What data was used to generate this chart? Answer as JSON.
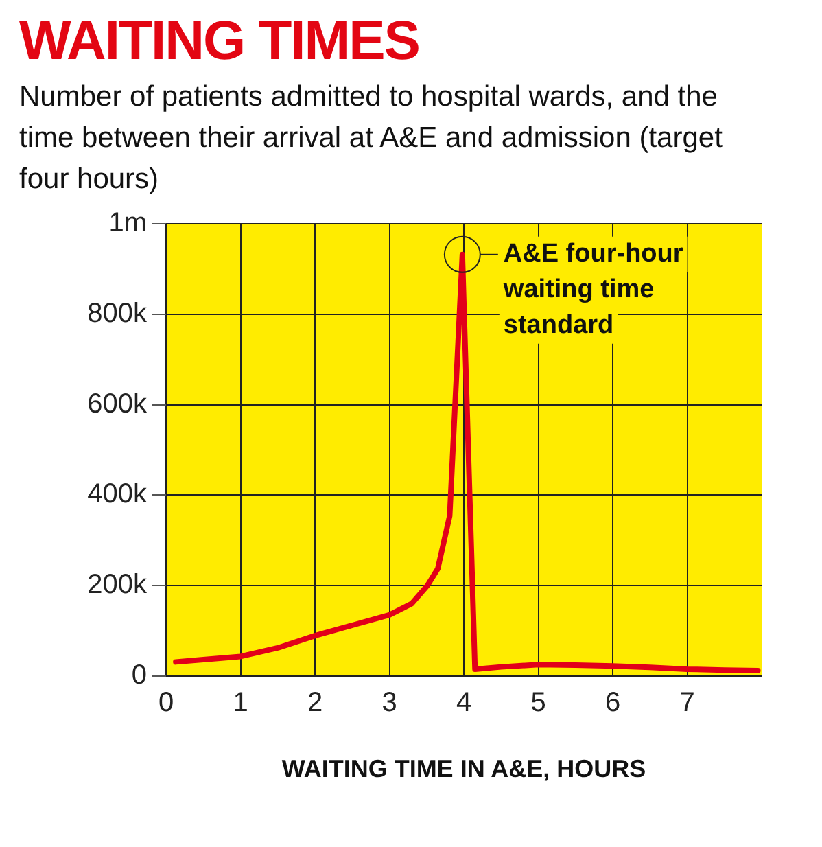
{
  "chart_data": {
    "type": "line",
    "title": "WAITING TIMES",
    "subtitle": "Number of patients admitted to hospital wards, and the time between their arrival at A&E and admission (target four hours)",
    "xlabel": "WAITING TIME IN A&E, HOURS",
    "x": [
      0.13,
      0.5,
      1,
      1.5,
      2,
      2.5,
      3,
      3.3,
      3.51,
      3.65,
      3.81,
      3.98,
      4.15,
      4.5,
      5,
      5.5,
      6,
      6.5,
      7,
      7.5,
      7.95
    ],
    "series": [
      {
        "color": "#e2001a",
        "values": [
          31000,
          36000,
          43000,
          62000,
          89000,
          112000,
          135000,
          160000,
          200000,
          237000,
          354000,
          932000,
          15000,
          20000,
          25000,
          24000,
          22000,
          19000,
          15000,
          13000,
          12000
        ]
      }
    ],
    "xlim": [
      0,
      8
    ],
    "xticks": [
      0,
      1,
      2,
      3,
      4,
      5,
      6,
      7
    ],
    "ylim": [
      0,
      1000000
    ],
    "yticks": [
      {
        "value": 0,
        "label": "0"
      },
      {
        "value": 200000,
        "label": "200k"
      },
      {
        "value": 400000,
        "label": "400k"
      },
      {
        "value": 600000,
        "label": "600k"
      },
      {
        "value": 800000,
        "label": "800k"
      },
      {
        "value": 1000000,
        "label": "1m"
      }
    ],
    "grid": true,
    "legend": false,
    "marker": "none",
    "line_style": "solid",
    "annotations": [
      {
        "text": "A&E four-hour waiting time standard",
        "x": 3.98,
        "y": 932000
      }
    ]
  }
}
